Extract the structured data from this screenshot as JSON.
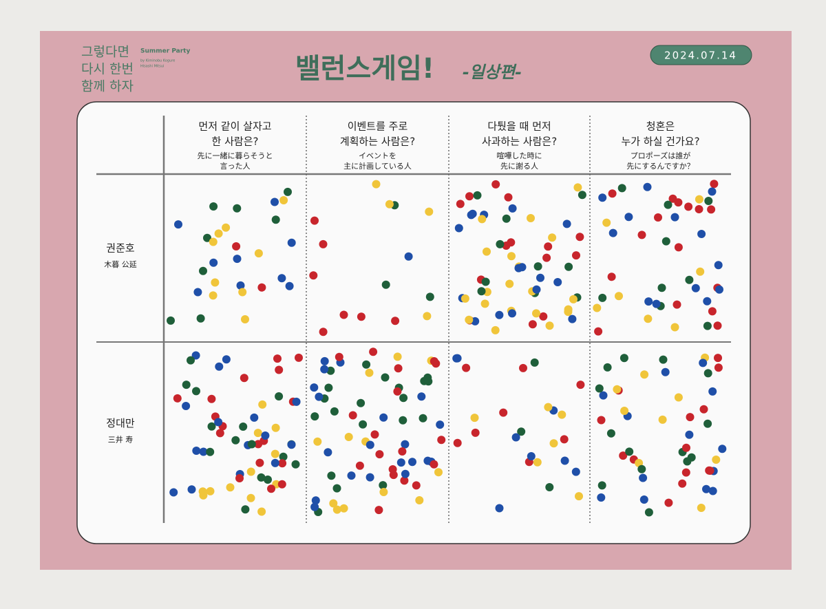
{
  "header": {
    "logo": [
      "그렇다면",
      "다시 한번",
      "함께 하자"
    ],
    "event": "Summer Party",
    "credit": [
      "by Kiminobu Kogure",
      "Hisashi Mitsui"
    ],
    "title": "밸런스게임!",
    "subtitle": "-일상편-",
    "date": "2024.07.14"
  },
  "table": {
    "columns": [
      {
        "question": [
          "먼저 같이 살자고",
          "한 사람은?"
        ],
        "translation": [
          "先に一緒に暮らそうと",
          "言った人"
        ]
      },
      {
        "question": [
          "이벤트를 주로",
          "계획하는 사람은?"
        ],
        "translation": [
          "イベントを",
          "主に計画している人"
        ]
      },
      {
        "question": [
          "다퉜을 때 먼저",
          "사과하는 사람은?"
        ],
        "translation": [
          "喧嘩した時に",
          "先に謝る人"
        ]
      },
      {
        "question": [
          "청혼은",
          "누가 하실 건가요?"
        ],
        "translation": [
          "プロポーズは誰が",
          "先にするんですか？"
        ]
      }
    ],
    "rows": [
      {
        "name": "권준호",
        "name_ja": "木暮 公延",
        "votes": [
          28,
          15,
          60,
          45
        ]
      },
      {
        "name": "정대만",
        "name_ja": "三井 寿",
        "votes": [
          60,
          70,
          25,
          50
        ]
      }
    ]
  }
}
